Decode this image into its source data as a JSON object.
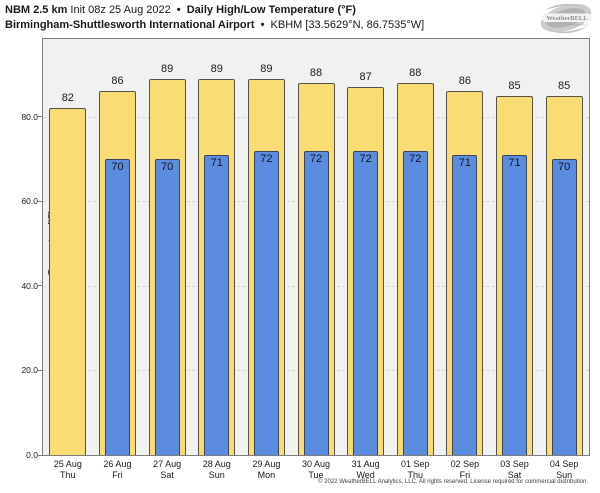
{
  "header": {
    "line1": {
      "product": "NBM 2.5 km",
      "init": "Init 08z 25 Aug 2022",
      "sep": "•",
      "title": "Daily High/Low Temperature (°F)"
    },
    "line2": {
      "station": "Birmingham-Shuttlesworth International Airport",
      "sep": "•",
      "id_coords": "KBHM [33.5629°N, 86.7535°W]"
    }
  },
  "logo": {
    "text": "WeatherBELL",
    "subtext": "Analytics LLC"
  },
  "chart_data": {
    "type": "bar",
    "title": "Daily High/Low Temperature (°F)",
    "ylabel": "Temperature [°F]",
    "ylim": [
      0,
      98.4
    ],
    "yticks": [
      0,
      20,
      40,
      60,
      80
    ],
    "ytick_labels": [
      "0.0",
      "20.0",
      "40.0",
      "60.0",
      "80.0"
    ],
    "grid": "horizontal-dashed",
    "legend": "none",
    "categories": [
      {
        "date": "25 Aug",
        "day": "Thu"
      },
      {
        "date": "26 Aug",
        "day": "Fri"
      },
      {
        "date": "27 Aug",
        "day": "Sat"
      },
      {
        "date": "28 Aug",
        "day": "Sun"
      },
      {
        "date": "29 Aug",
        "day": "Mon"
      },
      {
        "date": "30 Aug",
        "day": "Tue"
      },
      {
        "date": "31 Aug",
        "day": "Wed"
      },
      {
        "date": "01 Sep",
        "day": "Thu"
      },
      {
        "date": "02 Sep",
        "day": "Fri"
      },
      {
        "date": "03 Sep",
        "day": "Sat"
      },
      {
        "date": "04 Sep",
        "day": "Sun"
      }
    ],
    "series": [
      {
        "name": "High",
        "color": "#f9dc74",
        "values": [
          82,
          86,
          89,
          89,
          89,
          88,
          87,
          88,
          86,
          85,
          85
        ]
      },
      {
        "name": "Low",
        "color": "#5c8ce0",
        "values": [
          null,
          70,
          70,
          71,
          72,
          72,
          72,
          72,
          71,
          71,
          70
        ]
      }
    ]
  },
  "footer": {
    "copyright": "© 2022 WeatherBELL Analytics, LLC. All rights reserved. License required for commercial distribution."
  },
  "colors": {
    "plot_bg": "#f1f1f1",
    "grid": "#d5d5d5",
    "frame": "#7d7d7d",
    "bar_high": "#f9dc74",
    "bar_high_border": "#55524a",
    "bar_low": "#5c8ce0",
    "bar_low_border": "#3a4459",
    "label": "#1a1a1a"
  }
}
